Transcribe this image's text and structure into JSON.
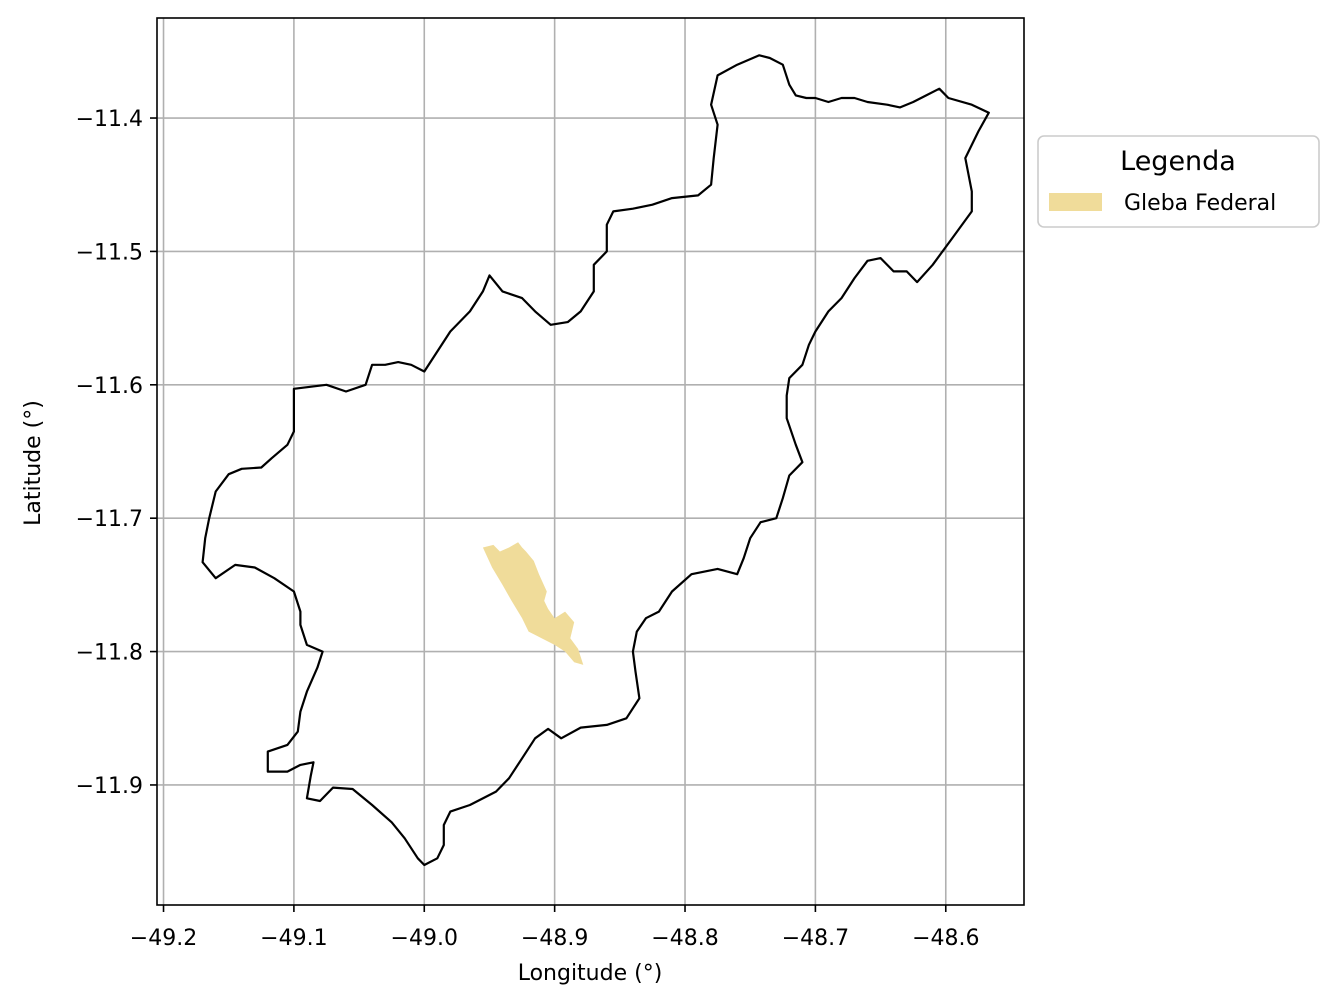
{
  "chart_data": {
    "type": "map",
    "title": "",
    "xlabel": "Longitude (°)",
    "ylabel": "Latitude (°)",
    "xlim": [
      -49.205,
      -48.54
    ],
    "ylim": [
      -11.99,
      -11.325
    ],
    "grid": true,
    "x_ticks": [
      {
        "value": -49.2,
        "label": "−49.2"
      },
      {
        "value": -49.1,
        "label": "−49.1"
      },
      {
        "value": -49.0,
        "label": "−49.0"
      },
      {
        "value": -48.9,
        "label": "−48.9"
      },
      {
        "value": -48.8,
        "label": "−48.8"
      },
      {
        "value": -48.7,
        "label": "−48.7"
      },
      {
        "value": -48.6,
        "label": "−48.6"
      }
    ],
    "y_ticks": [
      {
        "value": -11.4,
        "label": "−11.4"
      },
      {
        "value": -11.5,
        "label": "−11.5"
      },
      {
        "value": -11.6,
        "label": "−11.6"
      },
      {
        "value": -11.7,
        "label": "−11.7"
      },
      {
        "value": -11.8,
        "label": "−11.8"
      },
      {
        "value": -11.9,
        "label": "−11.9"
      }
    ],
    "legend": {
      "title": "Legenda",
      "placement": "right-outside-top",
      "entries": [
        {
          "label": "Gleba Federal",
          "color": "#f0dc9a"
        }
      ]
    },
    "layers": [
      {
        "name": "boundary",
        "stroke": "#000000",
        "fill": "none",
        "coordinates": [
          [
            -48.743,
            -11.353
          ],
          [
            -48.76,
            -11.36
          ],
          [
            -48.775,
            -11.368
          ],
          [
            -48.78,
            -11.39
          ],
          [
            -48.775,
            -11.405
          ],
          [
            -48.778,
            -11.43
          ],
          [
            -48.78,
            -11.45
          ],
          [
            -48.79,
            -11.458
          ],
          [
            -48.81,
            -11.46
          ],
          [
            -48.825,
            -11.465
          ],
          [
            -48.84,
            -11.468
          ],
          [
            -48.855,
            -11.47
          ],
          [
            -48.86,
            -11.48
          ],
          [
            -48.86,
            -11.5
          ],
          [
            -48.87,
            -11.51
          ],
          [
            -48.87,
            -11.53
          ],
          [
            -48.88,
            -11.545
          ],
          [
            -48.89,
            -11.553
          ],
          [
            -48.903,
            -11.555
          ],
          [
            -48.915,
            -11.545
          ],
          [
            -48.925,
            -11.535
          ],
          [
            -48.94,
            -11.53
          ],
          [
            -48.95,
            -11.518
          ],
          [
            -48.955,
            -11.53
          ],
          [
            -48.965,
            -11.545
          ],
          [
            -48.98,
            -11.56
          ],
          [
            -48.99,
            -11.575
          ],
          [
            -49.0,
            -11.59
          ],
          [
            -49.01,
            -11.585
          ],
          [
            -49.02,
            -11.583
          ],
          [
            -49.03,
            -11.585
          ],
          [
            -49.04,
            -11.585
          ],
          [
            -49.045,
            -11.6
          ],
          [
            -49.06,
            -11.605
          ],
          [
            -49.075,
            -11.6
          ],
          [
            -49.1,
            -11.603
          ],
          [
            -49.1,
            -11.62
          ],
          [
            -49.1,
            -11.635
          ],
          [
            -49.105,
            -11.645
          ],
          [
            -49.117,
            -11.655
          ],
          [
            -49.125,
            -11.662
          ],
          [
            -49.14,
            -11.663
          ],
          [
            -49.15,
            -11.667
          ],
          [
            -49.16,
            -11.68
          ],
          [
            -49.165,
            -11.7
          ],
          [
            -49.168,
            -11.715
          ],
          [
            -49.17,
            -11.733
          ],
          [
            -49.16,
            -11.745
          ],
          [
            -49.145,
            -11.735
          ],
          [
            -49.13,
            -11.737
          ],
          [
            -49.115,
            -11.745
          ],
          [
            -49.1,
            -11.755
          ],
          [
            -49.095,
            -11.77
          ],
          [
            -49.095,
            -11.78
          ],
          [
            -49.09,
            -11.795
          ],
          [
            -49.078,
            -11.8
          ],
          [
            -49.082,
            -11.812
          ],
          [
            -49.09,
            -11.83
          ],
          [
            -49.095,
            -11.845
          ],
          [
            -49.097,
            -11.86
          ],
          [
            -49.105,
            -11.87
          ],
          [
            -49.12,
            -11.875
          ],
          [
            -49.12,
            -11.89
          ],
          [
            -49.105,
            -11.89
          ],
          [
            -49.095,
            -11.885
          ],
          [
            -49.085,
            -11.883
          ],
          [
            -49.087,
            -11.893
          ],
          [
            -49.09,
            -11.91
          ],
          [
            -49.08,
            -11.912
          ],
          [
            -49.07,
            -11.902
          ],
          [
            -49.055,
            -11.903
          ],
          [
            -49.04,
            -11.915
          ],
          [
            -49.025,
            -11.928
          ],
          [
            -49.015,
            -11.94
          ],
          [
            -49.005,
            -11.955
          ],
          [
            -49.0,
            -11.96
          ],
          [
            -48.99,
            -11.955
          ],
          [
            -48.985,
            -11.945
          ],
          [
            -48.985,
            -11.93
          ],
          [
            -48.98,
            -11.92
          ],
          [
            -48.965,
            -11.915
          ],
          [
            -48.945,
            -11.905
          ],
          [
            -48.935,
            -11.895
          ],
          [
            -48.925,
            -11.88
          ],
          [
            -48.915,
            -11.865
          ],
          [
            -48.905,
            -11.858
          ],
          [
            -48.895,
            -11.865
          ],
          [
            -48.88,
            -11.857
          ],
          [
            -48.86,
            -11.855
          ],
          [
            -48.845,
            -11.85
          ],
          [
            -48.835,
            -11.835
          ],
          [
            -48.838,
            -11.815
          ],
          [
            -48.84,
            -11.8
          ],
          [
            -48.837,
            -11.785
          ],
          [
            -48.83,
            -11.775
          ],
          [
            -48.82,
            -11.77
          ],
          [
            -48.81,
            -11.755
          ],
          [
            -48.795,
            -11.742
          ],
          [
            -48.775,
            -11.738
          ],
          [
            -48.76,
            -11.742
          ],
          [
            -48.755,
            -11.73
          ],
          [
            -48.75,
            -11.715
          ],
          [
            -48.742,
            -11.703
          ],
          [
            -48.73,
            -11.7
          ],
          [
            -48.725,
            -11.685
          ],
          [
            -48.72,
            -11.668
          ],
          [
            -48.71,
            -11.658
          ],
          [
            -48.715,
            -11.645
          ],
          [
            -48.722,
            -11.625
          ],
          [
            -48.722,
            -11.608
          ],
          [
            -48.72,
            -11.595
          ],
          [
            -48.71,
            -11.585
          ],
          [
            -48.705,
            -11.57
          ],
          [
            -48.7,
            -11.56
          ],
          [
            -48.69,
            -11.545
          ],
          [
            -48.68,
            -11.535
          ],
          [
            -48.67,
            -11.52
          ],
          [
            -48.66,
            -11.507
          ],
          [
            -48.65,
            -11.505
          ],
          [
            -48.64,
            -11.515
          ],
          [
            -48.63,
            -11.515
          ],
          [
            -48.622,
            -11.523
          ],
          [
            -48.61,
            -11.51
          ],
          [
            -48.595,
            -11.49
          ],
          [
            -48.58,
            -11.47
          ],
          [
            -48.58,
            -11.455
          ],
          [
            -48.585,
            -11.43
          ],
          [
            -48.575,
            -11.41
          ],
          [
            -48.567,
            -11.396
          ],
          [
            -48.58,
            -11.39
          ],
          [
            -48.598,
            -11.385
          ],
          [
            -48.605,
            -11.378
          ],
          [
            -48.615,
            -11.383
          ],
          [
            -48.625,
            -11.388
          ],
          [
            -48.635,
            -11.392
          ],
          [
            -48.645,
            -11.39
          ],
          [
            -48.66,
            -11.388
          ],
          [
            -48.67,
            -11.385
          ],
          [
            -48.68,
            -11.385
          ],
          [
            -48.69,
            -11.388
          ],
          [
            -48.7,
            -11.385
          ],
          [
            -48.707,
            -11.385
          ],
          [
            -48.715,
            -11.383
          ],
          [
            -48.72,
            -11.375
          ],
          [
            -48.725,
            -11.36
          ],
          [
            -48.735,
            -11.355
          ],
          [
            -48.743,
            -11.353
          ]
        ]
      },
      {
        "name": "Gleba Federal",
        "stroke": "none",
        "fill": "#f0dc9a",
        "coordinates": [
          [
            -48.955,
            -11.722
          ],
          [
            -48.947,
            -11.72
          ],
          [
            -48.942,
            -11.725
          ],
          [
            -48.935,
            -11.722
          ],
          [
            -48.928,
            -11.718
          ],
          [
            -48.925,
            -11.722
          ],
          [
            -48.922,
            -11.725
          ],
          [
            -48.916,
            -11.732
          ],
          [
            -48.912,
            -11.742
          ],
          [
            -48.906,
            -11.755
          ],
          [
            -48.908,
            -11.762
          ],
          [
            -48.905,
            -11.768
          ],
          [
            -48.9,
            -11.775
          ],
          [
            -48.892,
            -11.77
          ],
          [
            -48.885,
            -11.778
          ],
          [
            -48.888,
            -11.79
          ],
          [
            -48.882,
            -11.798
          ],
          [
            -48.878,
            -11.81
          ],
          [
            -48.885,
            -11.808
          ],
          [
            -48.892,
            -11.8
          ],
          [
            -48.9,
            -11.795
          ],
          [
            -48.91,
            -11.79
          ],
          [
            -48.92,
            -11.785
          ],
          [
            -48.925,
            -11.775
          ],
          [
            -48.933,
            -11.762
          ],
          [
            -48.94,
            -11.75
          ],
          [
            -48.948,
            -11.737
          ],
          [
            -48.955,
            -11.722
          ]
        ]
      }
    ]
  }
}
